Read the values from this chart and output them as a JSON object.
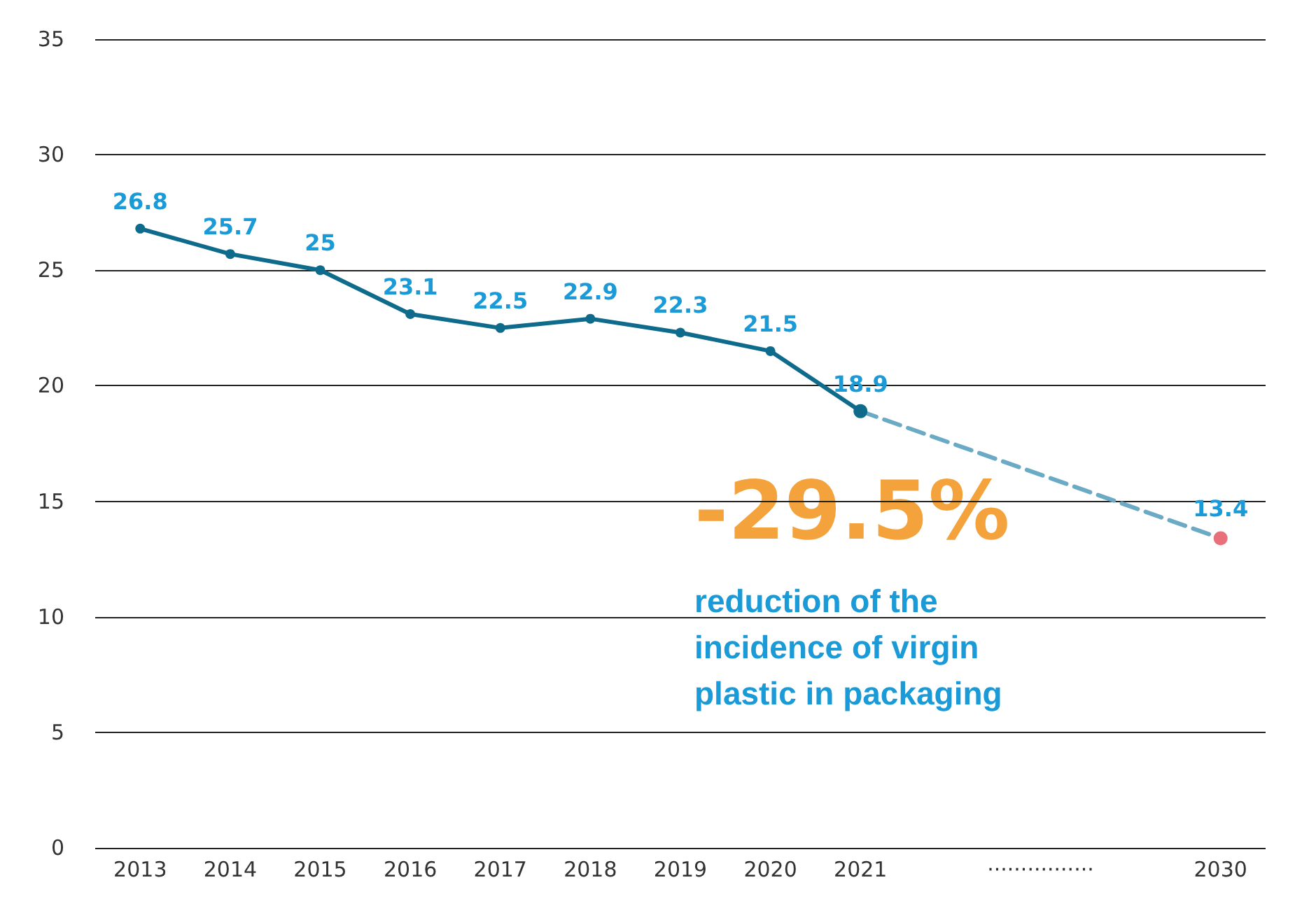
{
  "chart_data": {
    "type": "line",
    "categories": [
      "2013",
      "2014",
      "2015",
      "2016",
      "2017",
      "2018",
      "2019",
      "2020",
      "2021",
      null,
      "················",
      null,
      "2030"
    ],
    "series": [
      {
        "color": "#0e6b8c",
        "values": [
          26.8,
          25.7,
          25,
          23.1,
          22.5,
          22.9,
          22.3,
          21.5,
          18.9,
          null,
          null,
          null,
          null
        ]
      },
      {
        "color": "#6aaac4",
        "line_style": "dashed",
        "colors": [
          "#0e6b8c",
          "#0e6b8c",
          "#0e6b8c",
          "#0e6b8c",
          "#0e6b8c",
          "#0e6b8c",
          "#0e6b8c",
          "#0e6b8c",
          "#0e6b8c",
          "#0e6b8c",
          "#0e6b8c",
          "#0e6b8c",
          "#e8707a"
        ],
        "values": [
          null,
          null,
          null,
          null,
          null,
          null,
          null,
          null,
          18.9,
          null,
          null,
          null,
          13.4
        ],
        "value_labels": [
          null,
          null,
          null,
          null,
          null,
          null,
          null,
          null,
          null,
          null,
          null,
          null,
          "13.4"
        ]
      }
    ],
    "ylim": [
      0,
      35
    ],
    "yticks": [
      0,
      5,
      10,
      15,
      20,
      25,
      30,
      35
    ],
    "grid": "y",
    "marker": "circle",
    "data_labels": true,
    "annotations": [
      "-29.5%",
      "reduction of the incidence of virgin plastic in packaging"
    ]
  }
}
